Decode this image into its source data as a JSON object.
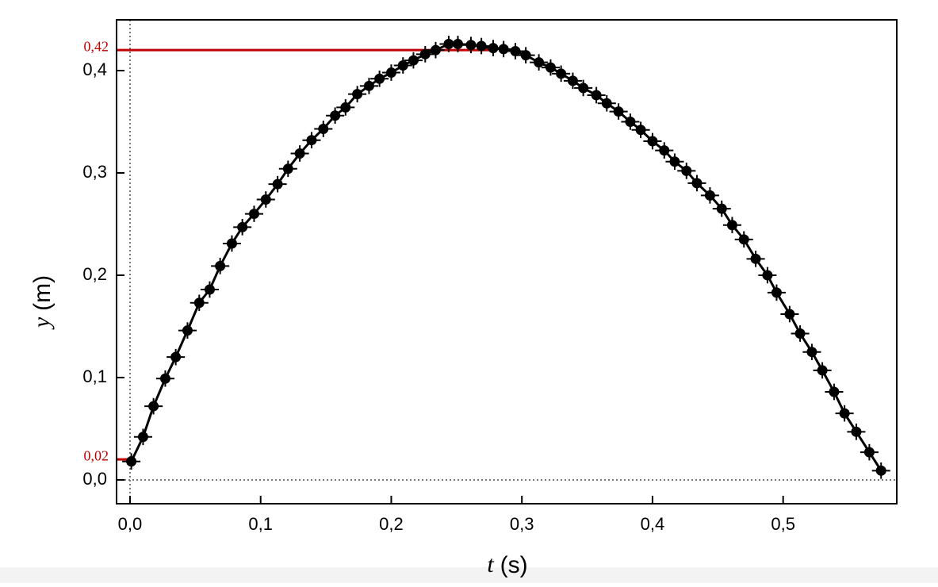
{
  "chart_data": {
    "type": "scatter",
    "xlabel": {
      "var": "t",
      "unit": "(s)"
    },
    "ylabel": {
      "var": "y",
      "unit": "(m)"
    },
    "xlim": [
      -0.0103,
      0.587
    ],
    "ylim": [
      -0.0233,
      0.4496
    ],
    "xticks": [
      {
        "value": 0,
        "label": "0,0"
      },
      {
        "value": 0.1,
        "label": "0,1"
      },
      {
        "value": 0.2,
        "label": "0,2"
      },
      {
        "value": 0.3,
        "label": "0,3"
      },
      {
        "value": 0.4,
        "label": "0,4"
      },
      {
        "value": 0.5,
        "label": "0,5"
      }
    ],
    "yticks": [
      {
        "value": 0,
        "label": "0,0"
      },
      {
        "value": 0.1,
        "label": "0,1"
      },
      {
        "value": 0.2,
        "label": "0,2"
      },
      {
        "value": 0.3,
        "label": "0,3"
      },
      {
        "value": 0.4,
        "label": "0,4"
      }
    ],
    "xerr": 0.007,
    "yerr": 0.008,
    "reference_lines": [
      {
        "value": 0.42,
        "label": "0,42",
        "x_end": 0.28,
        "color": "#c00000"
      },
      {
        "value": 0.02,
        "label": "0,02",
        "x_end": 0,
        "color": "#c00000"
      }
    ],
    "series": [
      {
        "name": null,
        "color": "#000000",
        "x": [
          0.001,
          0.01,
          0.018,
          0.027,
          0.035,
          0.044,
          0.053,
          0.061,
          0.069,
          0.078,
          0.086,
          0.095,
          0.104,
          0.113,
          0.121,
          0.13,
          0.139,
          0.148,
          0.157,
          0.165,
          0.174,
          0.183,
          0.191,
          0.2,
          0.209,
          0.217,
          0.226,
          0.234,
          0.244,
          0.251,
          0.261,
          0.269,
          0.278,
          0.286,
          0.295,
          0.303,
          0.313,
          0.322,
          0.33,
          0.339,
          0.347,
          0.357,
          0.365,
          0.374,
          0.383,
          0.391,
          0.4,
          0.409,
          0.417,
          0.426,
          0.434,
          0.444,
          0.453,
          0.461,
          0.47,
          0.479,
          0.488,
          0.495,
          0.505,
          0.513,
          0.522,
          0.53,
          0.539,
          0.547,
          0.556,
          0.566,
          0.575
        ],
        "values": [
          0.018,
          0.042,
          0.072,
          0.099,
          0.12,
          0.146,
          0.173,
          0.186,
          0.209,
          0.231,
          0.247,
          0.26,
          0.274,
          0.289,
          0.304,
          0.319,
          0.332,
          0.343,
          0.356,
          0.364,
          0.377,
          0.385,
          0.392,
          0.398,
          0.405,
          0.41,
          0.416,
          0.42,
          0.426,
          0.426,
          0.425,
          0.424,
          0.422,
          0.421,
          0.419,
          0.415,
          0.408,
          0.403,
          0.397,
          0.39,
          0.383,
          0.376,
          0.368,
          0.36,
          0.35,
          0.342,
          0.331,
          0.322,
          0.311,
          0.302,
          0.29,
          0.278,
          0.265,
          0.249,
          0.235,
          0.216,
          0.2,
          0.183,
          0.162,
          0.143,
          0.125,
          0.107,
          0.086,
          0.065,
          0.047,
          0.027,
          0.009
        ]
      }
    ]
  }
}
